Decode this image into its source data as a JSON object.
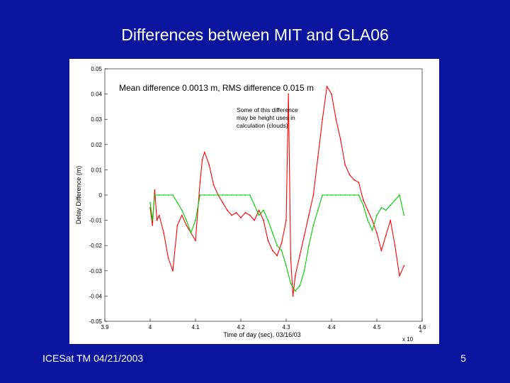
{
  "slide": {
    "title": "Differences between MIT and GLA06",
    "footer_left": "ICESat TM 04/21/2003",
    "page_number": "5"
  },
  "chart_data": {
    "type": "line",
    "xlabel": "Time of day (sec), 03/16/03",
    "ylabel": "Delay Difference (m)",
    "x_multiplier": "x 10",
    "x_multiplier_exp": "4",
    "xlim": [
      3.9,
      4.6
    ],
    "ylim": [
      -0.05,
      0.05
    ],
    "xticks": [
      "3.9",
      "4",
      "4.1",
      "4.2",
      "4.3",
      "4.4",
      "4.5",
      "4.6"
    ],
    "yticks": [
      "0.05",
      "0.04",
      "0.03",
      "0.02",
      "0.01",
      "0",
      "-0.01",
      "-0.02",
      "-0.03",
      "-0.04",
      "-0.05"
    ],
    "stats_annotation": "Mean difference 0.0013 m, RMS difference 0.015 m",
    "note_lines": [
      "Some of this difference",
      "may be height uses in",
      "calculation (clouds)"
    ],
    "grid": false,
    "colors": {
      "red": "#ff0000",
      "green": "#00cc00"
    },
    "series": [
      {
        "color": "red",
        "x": [
          4.0,
          4.005,
          4.01,
          4.015,
          4.02,
          4.03,
          4.04,
          4.05,
          4.06,
          4.07,
          4.08,
          4.09,
          4.1,
          4.11,
          4.115,
          4.12,
          4.13,
          4.14,
          4.15,
          4.16,
          4.17,
          4.18,
          4.19,
          4.2,
          4.21,
          4.22,
          4.23,
          4.24,
          4.25,
          4.26,
          4.27,
          4.28,
          4.29,
          4.3,
          4.305,
          4.31,
          4.315,
          4.32,
          4.33,
          4.34,
          4.35,
          4.36,
          4.37,
          4.38,
          4.39,
          4.4,
          4.41,
          4.42,
          4.43,
          4.44,
          4.45,
          4.46,
          4.47,
          4.48,
          4.49,
          4.5,
          4.51,
          4.52,
          4.53,
          4.54,
          4.55,
          4.56
        ],
        "y": [
          -0.005,
          -0.012,
          0.002,
          -0.01,
          -0.008,
          -0.015,
          -0.025,
          -0.03,
          -0.012,
          -0.008,
          -0.012,
          -0.015,
          -0.018,
          0.005,
          0.014,
          0.017,
          0.012,
          0.004,
          0.0,
          -0.003,
          -0.006,
          -0.008,
          -0.007,
          -0.009,
          -0.007,
          -0.008,
          -0.01,
          -0.006,
          -0.01,
          -0.018,
          -0.022,
          -0.024,
          -0.019,
          -0.01,
          0.04,
          -0.025,
          -0.04,
          -0.032,
          -0.024,
          -0.016,
          -0.008,
          0.0,
          0.015,
          0.03,
          0.043,
          0.04,
          0.03,
          0.022,
          0.012,
          0.008,
          0.006,
          0.005,
          -0.002,
          -0.006,
          -0.01,
          -0.015,
          -0.022,
          -0.016,
          -0.01,
          -0.02,
          -0.032,
          -0.028
        ]
      },
      {
        "color": "green",
        "x": [
          4.0,
          4.005,
          4.01,
          4.02,
          4.03,
          4.04,
          4.05,
          4.06,
          4.07,
          4.08,
          4.09,
          4.1,
          4.11,
          4.12,
          4.13,
          4.14,
          4.15,
          4.16,
          4.17,
          4.18,
          4.19,
          4.2,
          4.21,
          4.22,
          4.23,
          4.24,
          4.25,
          4.26,
          4.27,
          4.28,
          4.29,
          4.3,
          4.31,
          4.32,
          4.33,
          4.34,
          4.35,
          4.36,
          4.37,
          4.38,
          4.39,
          4.4,
          4.41,
          4.42,
          4.43,
          4.44,
          4.45,
          4.46,
          4.47,
          4.48,
          4.49,
          4.5,
          4.51,
          4.52,
          4.53,
          4.54,
          4.55,
          4.56
        ],
        "y": [
          -0.003,
          -0.01,
          0.0,
          0.0,
          0.0,
          0.0,
          0.0,
          -0.003,
          -0.006,
          -0.01,
          -0.015,
          -0.01,
          0.0,
          0.0,
          0.0,
          0.0,
          0.0,
          0.0,
          0.0,
          0.0,
          0.0,
          0.0,
          0.0,
          0.0,
          -0.004,
          -0.008,
          -0.006,
          -0.01,
          -0.015,
          -0.02,
          -0.022,
          -0.028,
          -0.035,
          -0.038,
          -0.036,
          -0.03,
          -0.02,
          -0.012,
          -0.006,
          0.0,
          0.0,
          0.0,
          0.0,
          0.0,
          0.0,
          0.0,
          0.0,
          0.0,
          -0.004,
          -0.01,
          -0.014,
          -0.008,
          -0.005,
          -0.006,
          -0.004,
          -0.002,
          0.0,
          -0.008
        ]
      }
    ]
  }
}
